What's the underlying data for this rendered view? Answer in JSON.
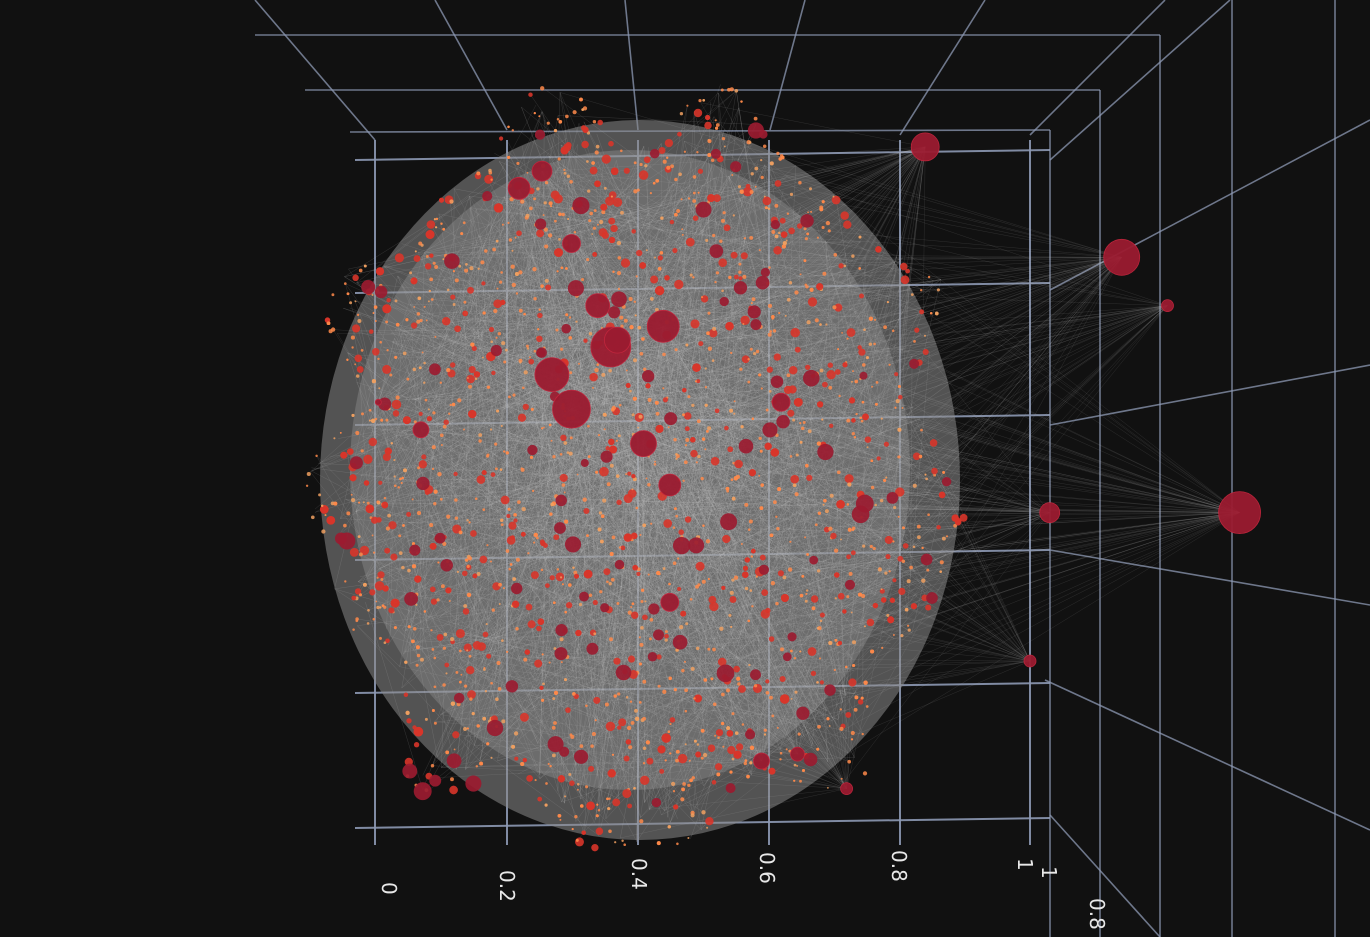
{
  "chart_data": {
    "type": "scatter",
    "subtype": "3d-network-graph",
    "title": "",
    "xlabel": "",
    "ylabel": "",
    "zlabel": "",
    "grid": true,
    "background": "#111111",
    "x_axis_ticks": [
      "0",
      "0.2",
      "0.4",
      "0.6",
      "0.8",
      "1"
    ],
    "z_axis_ticks": [
      "1",
      "0.8"
    ],
    "xlim": [
      0,
      1
    ],
    "ylim": [
      0,
      1
    ],
    "zlim": [
      0.8,
      1
    ],
    "hub_nodes": [
      {
        "x": 0.255,
        "y": 0.955,
        "size": 10
      },
      {
        "x": 0.22,
        "y": 0.93,
        "size": 11
      },
      {
        "x": 0.84,
        "y": 0.99,
        "size": 14
      },
      {
        "x": 1.14,
        "y": 0.83,
        "size": 18
      },
      {
        "x": 1.21,
        "y": 0.76,
        "size": 6
      },
      {
        "x": 1.03,
        "y": 0.46,
        "size": 10
      },
      {
        "x": 1.32,
        "y": 0.46,
        "size": 21
      },
      {
        "x": 0.005,
        "y": 0.62,
        "size": 3
      },
      {
        "x": 1.0,
        "y": 0.245,
        "size": 6
      },
      {
        "x": 0.72,
        "y": 0.06,
        "size": 6
      },
      {
        "x": 0.645,
        "y": 0.11,
        "size": 7
      },
      {
        "x": 0.3,
        "y": 0.85,
        "size": 9
      },
      {
        "x": 0.44,
        "y": 0.73,
        "size": 16
      },
      {
        "x": 0.36,
        "y": 0.7,
        "size": 20
      },
      {
        "x": 0.27,
        "y": 0.66,
        "size": 17
      },
      {
        "x": 0.3,
        "y": 0.61,
        "size": 19
      },
      {
        "x": 0.37,
        "y": 0.71,
        "size": 13
      },
      {
        "x": 0.34,
        "y": 0.76,
        "size": 12
      },
      {
        "x": 0.41,
        "y": 0.56,
        "size": 13
      },
      {
        "x": 0.45,
        "y": 0.5,
        "size": 11
      },
      {
        "x": 0.62,
        "y": 0.62,
        "size": 9
      },
      {
        "x": 0.07,
        "y": 0.58,
        "size": 8
      },
      {
        "x": 0.45,
        "y": 0.33,
        "size": 9
      },
      {
        "x": 0.59,
        "y": 0.1,
        "size": 8
      }
    ],
    "colors": {
      "hub": "#9b1b30",
      "node": "#d8352a",
      "small_node": "#ff8a4a",
      "edge": "#c8c8c8",
      "grid": "#8d99b4",
      "tick_label": "#e8e8e8"
    }
  }
}
